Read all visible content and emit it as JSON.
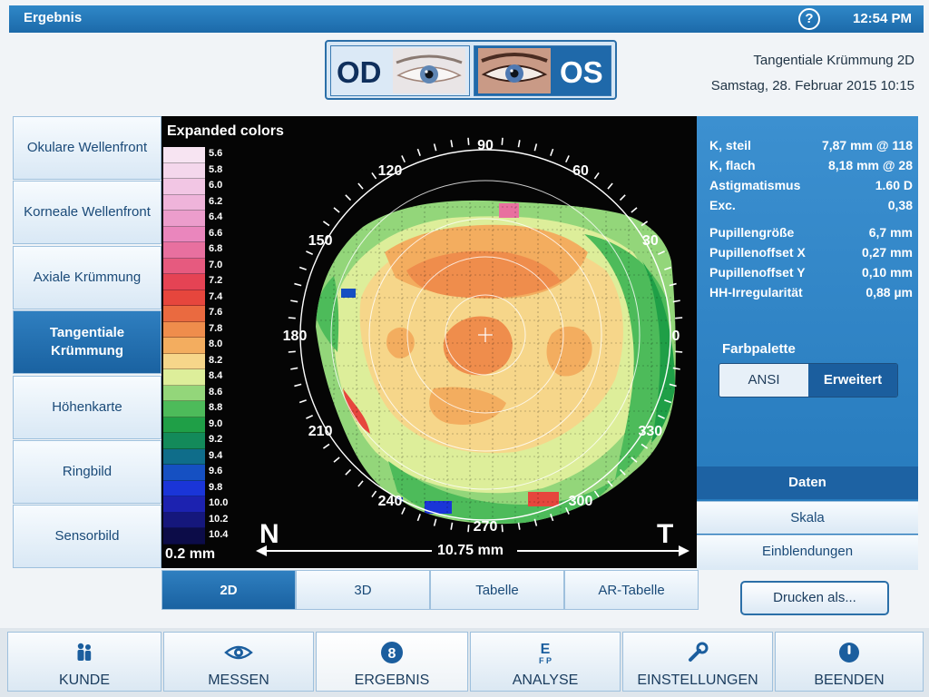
{
  "topbar": {
    "title": "Ergebnis",
    "help": "?",
    "time": "12:54 PM"
  },
  "eyes": {
    "od": "OD",
    "os": "OS",
    "selected": "OS"
  },
  "header": {
    "map_type": "Tangentiale Krümmung 2D",
    "date": "Samstag, 28. Februar 2015 10:15"
  },
  "leftnav": {
    "items": [
      {
        "label": "Okulare Wellenfront",
        "active": false
      },
      {
        "label": "Korneale Wellenfront",
        "active": false
      },
      {
        "label": "Axiale Krümmung",
        "active": false
      },
      {
        "label": "Tangentiale Krümmung",
        "active": true
      },
      {
        "label": "Höhenkarte",
        "active": false
      },
      {
        "label": "Ringbild",
        "active": false
      },
      {
        "label": "Sensorbild",
        "active": false
      }
    ]
  },
  "map": {
    "title": "Expanded colors",
    "step": "0.2 mm",
    "nasal": "N",
    "temporal": "T",
    "distance": "10.75 mm",
    "scale": [
      {
        "value": "5.6",
        "color": "#f7e4f2"
      },
      {
        "value": "5.8",
        "color": "#f4d7ec"
      },
      {
        "value": "6.0",
        "color": "#f2c6e4"
      },
      {
        "value": "6.2",
        "color": "#efb4da"
      },
      {
        "value": "6.4",
        "color": "#ec9dcc"
      },
      {
        "value": "6.6",
        "color": "#ea86bd"
      },
      {
        "value": "6.8",
        "color": "#e8709f"
      },
      {
        "value": "7.0",
        "color": "#e65a7f"
      },
      {
        "value": "7.2",
        "color": "#e54354"
      },
      {
        "value": "7.4",
        "color": "#e6463d"
      },
      {
        "value": "7.6",
        "color": "#ea6a40"
      },
      {
        "value": "7.8",
        "color": "#ef8d4c"
      },
      {
        "value": "8.0",
        "color": "#f3ad5f"
      },
      {
        "value": "8.2",
        "color": "#f6d68a"
      },
      {
        "value": "8.4",
        "color": "#ddee9a"
      },
      {
        "value": "8.6",
        "color": "#93d67a"
      },
      {
        "value": "8.8",
        "color": "#4dbb5a"
      },
      {
        "value": "9.0",
        "color": "#1f9f47"
      },
      {
        "value": "9.2",
        "color": "#138a5a"
      },
      {
        "value": "9.4",
        "color": "#0f6d8a"
      },
      {
        "value": "9.6",
        "color": "#1550c2"
      },
      {
        "value": "9.8",
        "color": "#1a35d8"
      },
      {
        "value": "10.0",
        "color": "#1c22b0"
      },
      {
        "value": "10.2",
        "color": "#15177c"
      },
      {
        "value": "10.4",
        "color": "#0c0c48"
      }
    ],
    "angles": [
      "90",
      "60",
      "30",
      "0",
      "330",
      "300",
      "270",
      "240",
      "210",
      "180",
      "150",
      "120"
    ]
  },
  "params": [
    {
      "label": "K, steil",
      "value": "7,87 mm @ 118"
    },
    {
      "label": "K, flach",
      "value": "8,18 mm @ 28"
    },
    {
      "label": "Astigmatismus",
      "value": "1.60 D"
    },
    {
      "label": "Exc.",
      "value": "0,38"
    },
    {
      "label": "Pupillengröße",
      "value": "6,7 mm"
    },
    {
      "label": "Pupillenoffset X",
      "value": "0,27 mm"
    },
    {
      "label": "Pupillenoffset Y",
      "value": "0,10 mm"
    },
    {
      "label": "HH-Irregularität",
      "value": "0,88 µm"
    }
  ],
  "palette": {
    "label": "Farbpalette",
    "ansi": "ANSI",
    "extended": "Erweitert",
    "selected": "Erweitert"
  },
  "rightbuttons": {
    "daten": "Daten",
    "skala": "Skala",
    "einblendungen": "Einblendungen"
  },
  "viewtabs": [
    {
      "label": "2D",
      "active": true
    },
    {
      "label": "3D",
      "active": false
    },
    {
      "label": "Tabelle",
      "active": false
    },
    {
      "label": "AR-Tabelle",
      "active": false
    }
  ],
  "print": "Drucken als...",
  "bottomnav": [
    {
      "label": "KUNDE",
      "icon": "people-icon"
    },
    {
      "label": "MESSEN",
      "icon": "eye-icon"
    },
    {
      "label": "ERGEBNIS",
      "icon": "eight-icon"
    },
    {
      "label": "ANALYSE",
      "icon": "eye-chart-icon"
    },
    {
      "label": "EINSTELLUNGEN",
      "icon": "wrench-icon"
    },
    {
      "label": "BEENDEN",
      "icon": "power-icon"
    }
  ]
}
